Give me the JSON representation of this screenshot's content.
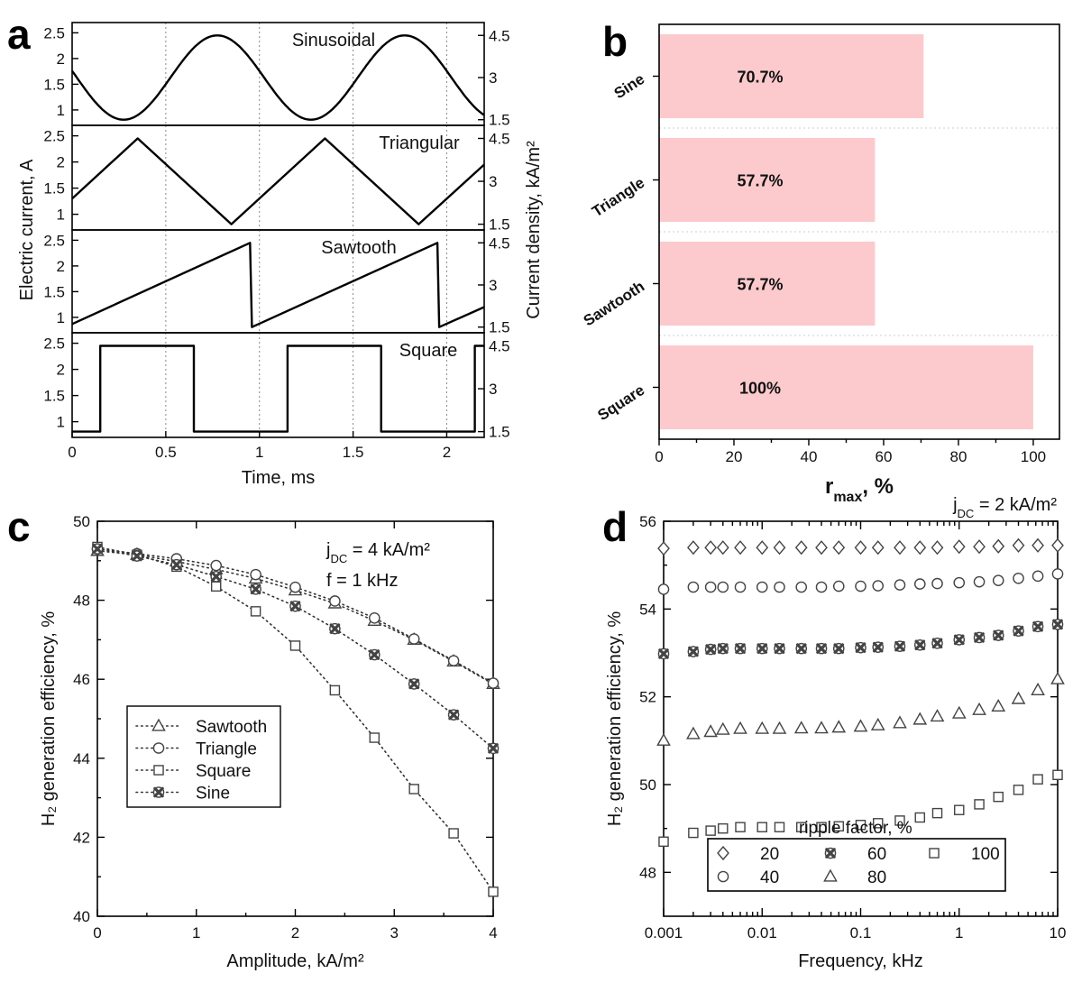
{
  "chart_data": [
    {
      "panel": "a",
      "type": "line",
      "xlabel": "Time, ms",
      "ylabel": "Electric current, A",
      "ylabel_right": "Current density, kA/m²",
      "xlim": [
        0,
        2.2
      ],
      "x_ticks": [
        "0",
        "0.5",
        "1",
        "1.5",
        "2"
      ],
      "ylim": [
        0.7,
        2.7
      ],
      "y_ticks": [
        "1",
        "1.5",
        "2",
        "2.5"
      ],
      "y_right_ticks": [
        "1.5",
        "3",
        "4.5"
      ],
      "vertical_gridlines_at": [
        0.5,
        1,
        1.5,
        2
      ],
      "period_ms": 1,
      "current_min_A": 0.81,
      "current_max_A": 2.45,
      "subplots": [
        {
          "title": "Sinusoidal",
          "shape": "sine",
          "x": [
            0,
            0.275,
            0.775,
            1.275,
            1.775,
            2.2
          ],
          "y": [
            1.74,
            0.81,
            2.45,
            0.81,
            2.45,
            0.95
          ]
        },
        {
          "title": "Triangular",
          "shape": "triangle",
          "x": [
            0,
            0.35,
            0.85,
            1.35,
            1.85,
            2.2
          ],
          "y": [
            1.3,
            2.45,
            0.81,
            2.45,
            0.81,
            1.95
          ]
        },
        {
          "title": "Sawtooth",
          "shape": "sawtooth",
          "x": [
            0,
            0.95,
            0.96,
            1.95,
            1.96,
            2.2
          ],
          "y": [
            0.87,
            2.45,
            0.81,
            2.45,
            0.81,
            1.2
          ]
        },
        {
          "title": "Square",
          "shape": "square",
          "x": [
            0,
            0.15,
            0.15,
            0.65,
            0.65,
            1.15,
            1.15,
            1.65,
            1.65,
            2.15,
            2.15,
            2.2
          ],
          "y": [
            0.81,
            0.81,
            2.45,
            2.45,
            0.81,
            0.81,
            2.45,
            2.45,
            0.81,
            0.81,
            2.45,
            2.45
          ]
        }
      ]
    },
    {
      "panel": "b",
      "type": "bar",
      "orientation": "horizontal",
      "categories": [
        "Sine",
        "Triangle",
        "Sawtooth",
        "Square"
      ],
      "values": [
        70.7,
        57.7,
        57.7,
        100
      ],
      "value_labels": [
        "70.7%",
        "57.7%",
        "57.7%",
        "100%"
      ],
      "xlabel_main": "r",
      "xlabel_sub": "max",
      "xlabel_suffix": ", %",
      "xlim": [
        0,
        107
      ],
      "x_ticks": [
        "0",
        "20",
        "40",
        "60",
        "80",
        "100"
      ],
      "bar_color": "#fccacd"
    },
    {
      "panel": "c",
      "type": "scatter",
      "xlabel": "Amplitude, kA/m²",
      "ylabel": "H₂ generation efficiency, %",
      "xlim": [
        0,
        4
      ],
      "ylim": [
        40,
        50
      ],
      "x_ticks": [
        "0",
        "1",
        "2",
        "3",
        "4"
      ],
      "y_ticks": [
        "40",
        "42",
        "44",
        "46",
        "48",
        "50"
      ],
      "annotation_line1": "j",
      "annotation_line1_sub": "DC",
      "annotation_line1_rest": " = 4 kA/m²",
      "annotation_line2": "f = 1 kHz",
      "x": [
        0,
        0.4,
        0.8,
        1.2,
        1.6,
        2.0,
        2.4,
        2.8,
        3.2,
        3.6,
        4.0
      ],
      "series": [
        {
          "name": "Sawtooth",
          "marker": "triangle",
          "values": [
            49.25,
            49.15,
            48.98,
            48.78,
            48.55,
            48.25,
            47.92,
            47.48,
            47.0,
            46.45,
            45.88
          ]
        },
        {
          "name": "Triangle",
          "marker": "circle",
          "values": [
            49.3,
            49.18,
            49.05,
            48.88,
            48.65,
            48.33,
            47.98,
            47.55,
            47.02,
            46.47,
            45.9
          ]
        },
        {
          "name": "Square",
          "marker": "square",
          "values": [
            49.35,
            49.15,
            48.85,
            48.35,
            47.72,
            46.85,
            45.72,
            44.52,
            43.22,
            42.1,
            40.62
          ]
        },
        {
          "name": "Sine",
          "marker": "xcircle",
          "values": [
            49.3,
            49.12,
            48.9,
            48.6,
            48.28,
            47.85,
            47.28,
            46.62,
            45.88,
            45.1,
            44.25
          ]
        }
      ]
    },
    {
      "panel": "d",
      "type": "scatter",
      "xscale": "log",
      "xlabel": "Frequency, kHz",
      "ylabel": "H₂ generation efficiency, %",
      "xlim": [
        0.001,
        10
      ],
      "ylim": [
        47,
        56
      ],
      "x_ticks": [
        "0.001",
        "0.01",
        "0.1",
        "1",
        "10"
      ],
      "y_ticks": [
        "48",
        "50",
        "52",
        "54",
        "56"
      ],
      "annotation_main": "j",
      "annotation_sub": "DC",
      "annotation_rest": " = 2 kA/m²",
      "legend_title": "ripple factor, %",
      "x": [
        0.001,
        0.002,
        0.003,
        0.004,
        0.006,
        0.01,
        0.015,
        0.025,
        0.04,
        0.06,
        0.1,
        0.15,
        0.25,
        0.4,
        0.6,
        1,
        1.6,
        2.5,
        4,
        6.3,
        10
      ],
      "series": [
        {
          "name": "20",
          "marker": "diamond",
          "values": [
            55.38,
            55.4,
            55.4,
            55.4,
            55.4,
            55.4,
            55.4,
            55.4,
            55.4,
            55.4,
            55.4,
            55.4,
            55.4,
            55.4,
            55.4,
            55.42,
            55.42,
            55.43,
            55.45,
            55.45,
            55.45
          ]
        },
        {
          "name": "40",
          "marker": "circle",
          "values": [
            54.45,
            54.5,
            54.5,
            54.5,
            54.5,
            54.5,
            54.5,
            54.5,
            54.5,
            54.52,
            54.52,
            54.53,
            54.55,
            54.57,
            54.58,
            54.6,
            54.62,
            54.65,
            54.7,
            54.75,
            54.8
          ]
        },
        {
          "name": "60",
          "marker": "xcircle",
          "values": [
            52.98,
            53.03,
            53.08,
            53.1,
            53.1,
            53.1,
            53.1,
            53.1,
            53.1,
            53.1,
            53.12,
            53.13,
            53.15,
            53.18,
            53.22,
            53.3,
            53.35,
            53.4,
            53.5,
            53.6,
            53.65
          ]
        },
        {
          "name": "80",
          "marker": "triangle",
          "values": [
            51.0,
            51.15,
            51.2,
            51.25,
            51.27,
            51.27,
            51.27,
            51.28,
            51.28,
            51.3,
            51.32,
            51.35,
            51.4,
            51.48,
            51.55,
            51.62,
            51.7,
            51.78,
            51.95,
            52.15,
            52.4
          ]
        },
        {
          "name": "100",
          "marker": "square",
          "values": [
            48.7,
            48.9,
            48.95,
            49.0,
            49.03,
            49.03,
            49.03,
            49.03,
            49.03,
            49.05,
            49.08,
            49.12,
            49.18,
            49.25,
            49.35,
            49.42,
            49.55,
            49.72,
            49.88,
            50.12,
            50.22
          ]
        }
      ]
    }
  ]
}
